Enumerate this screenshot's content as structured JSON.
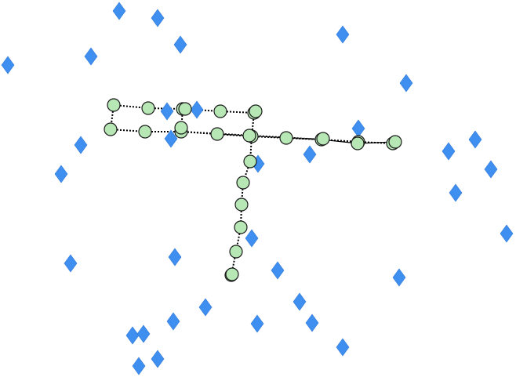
{
  "colors": {
    "background": "#ffffff",
    "diamond": "#3f8ff0",
    "snake_node": "#b7e7b5",
    "snake_link": "#000000"
  },
  "icons": {
    "collectible": "diamond-icon",
    "snake_segment": "circle-node-icon"
  }
}
